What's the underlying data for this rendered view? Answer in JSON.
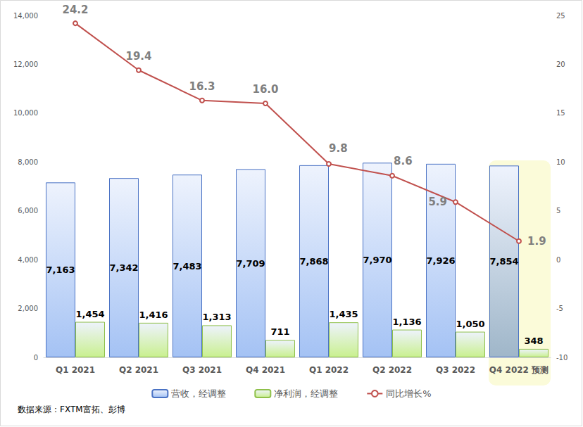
{
  "chart_data": {
    "type": "bar",
    "categories": [
      "Q1 2021",
      "Q2 2021",
      "Q3 2021",
      "Q4 2021",
      "Q1 2022",
      "Q2 2022",
      "Q3 2022",
      "Q4 2022 预测"
    ],
    "series": [
      {
        "name": "营收，经调整",
        "type": "bar",
        "color": "#a4c2f4",
        "colors": [
          "#a4c2f4",
          "#a4c2f4",
          "#a4c2f4",
          "#a4c2f4",
          "#a4c2f4",
          "#a4c2f4",
          "#a4c2f4",
          "#9fb6c9"
        ],
        "values": [
          7163,
          7342,
          7483,
          7709,
          7868,
          7970,
          7926,
          7854
        ],
        "value_labels": [
          "7,163",
          "7,342",
          "7,483",
          "7,709",
          "7,868",
          "7,970",
          "7,926",
          "7,854"
        ]
      },
      {
        "name": "净利润，经调整",
        "type": "bar",
        "color": "#c9f08f",
        "values": [
          1454,
          1416,
          1313,
          711,
          1435,
          1136,
          1050,
          348
        ],
        "value_labels": [
          "1,454",
          "1,416",
          "1,313",
          "711",
          "1,435",
          "1,136",
          "1,050",
          "348"
        ]
      },
      {
        "name": "同比增长%",
        "type": "line",
        "axis": "y2",
        "color": "#c0504d",
        "marker": "circle",
        "values": [
          24.2,
          19.4,
          16.3,
          16.0,
          9.8,
          8.6,
          5.9,
          1.9
        ],
        "value_labels": [
          "24.2",
          "19.4",
          "16.3",
          "16.0",
          "9.8",
          "8.6",
          "5.9",
          "1.9"
        ]
      }
    ],
    "ylim": [
      0,
      14000
    ],
    "yticks": [
      0,
      {
        "value": 2000,
        "label": "2,000"
      },
      {
        "value": 4000,
        "label": "4,000"
      },
      {
        "value": 6000,
        "label": "6,000"
      },
      {
        "value": 8000,
        "label": "8,000"
      },
      {
        "value": 10000,
        "label": "10,000"
      },
      {
        "value": 12000,
        "label": "12,000"
      },
      {
        "value": 14000,
        "label": "14,000"
      }
    ],
    "y2lim": [
      -10,
      25
    ],
    "y2ticks": [
      -10,
      -5,
      0,
      5,
      10,
      15,
      20,
      25
    ],
    "data_labels": true,
    "grid": false,
    "legend": "bottom",
    "annotations": [
      "数据来源：FXTM富拓、彭博"
    ]
  }
}
